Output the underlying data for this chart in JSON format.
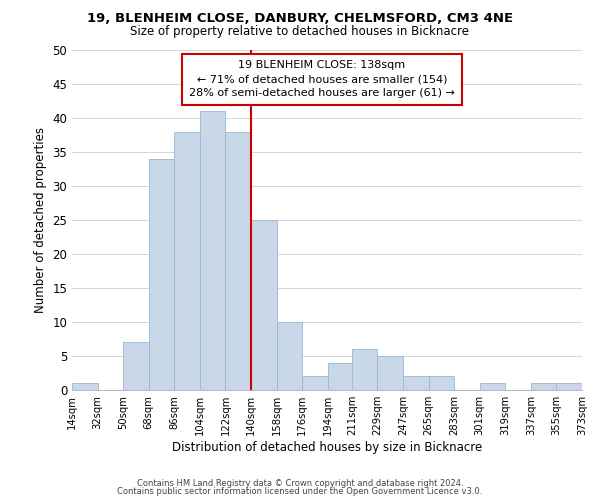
{
  "title1": "19, BLENHEIM CLOSE, DANBURY, CHELMSFORD, CM3 4NE",
  "title2": "Size of property relative to detached houses in Bicknacre",
  "xlabel": "Distribution of detached houses by size in Bicknacre",
  "ylabel": "Number of detached properties",
  "bin_edges": [
    14,
    32,
    50,
    68,
    86,
    104,
    122,
    140,
    158,
    176,
    194,
    211,
    229,
    247,
    265,
    283,
    301,
    319,
    337,
    355,
    373
  ],
  "bar_heights": [
    1,
    0,
    7,
    34,
    38,
    41,
    38,
    25,
    10,
    2,
    4,
    6,
    5,
    2,
    2,
    0,
    1,
    0,
    1,
    1
  ],
  "bar_color": "#c8d8e8",
  "bar_edgecolor": "#9ab8cc",
  "vline_x": 140,
  "vline_color": "#cc0000",
  "ylim": [
    0,
    50
  ],
  "yticks": [
    0,
    5,
    10,
    15,
    20,
    25,
    30,
    35,
    40,
    45,
    50
  ],
  "annotation_title": "19 BLENHEIM CLOSE: 138sqm",
  "annotation_line1": "← 71% of detached houses are smaller (154)",
  "annotation_line2": "28% of semi-detached houses are larger (61) →",
  "footer1": "Contains HM Land Registry data © Crown copyright and database right 2024.",
  "footer2": "Contains public sector information licensed under the Open Government Licence v3.0.",
  "tick_labels": [
    "14sqm",
    "32sqm",
    "50sqm",
    "68sqm",
    "86sqm",
    "104sqm",
    "122sqm",
    "140sqm",
    "158sqm",
    "176sqm",
    "194sqm",
    "211sqm",
    "229sqm",
    "247sqm",
    "265sqm",
    "283sqm",
    "301sqm",
    "319sqm",
    "337sqm",
    "355sqm",
    "373sqm"
  ]
}
